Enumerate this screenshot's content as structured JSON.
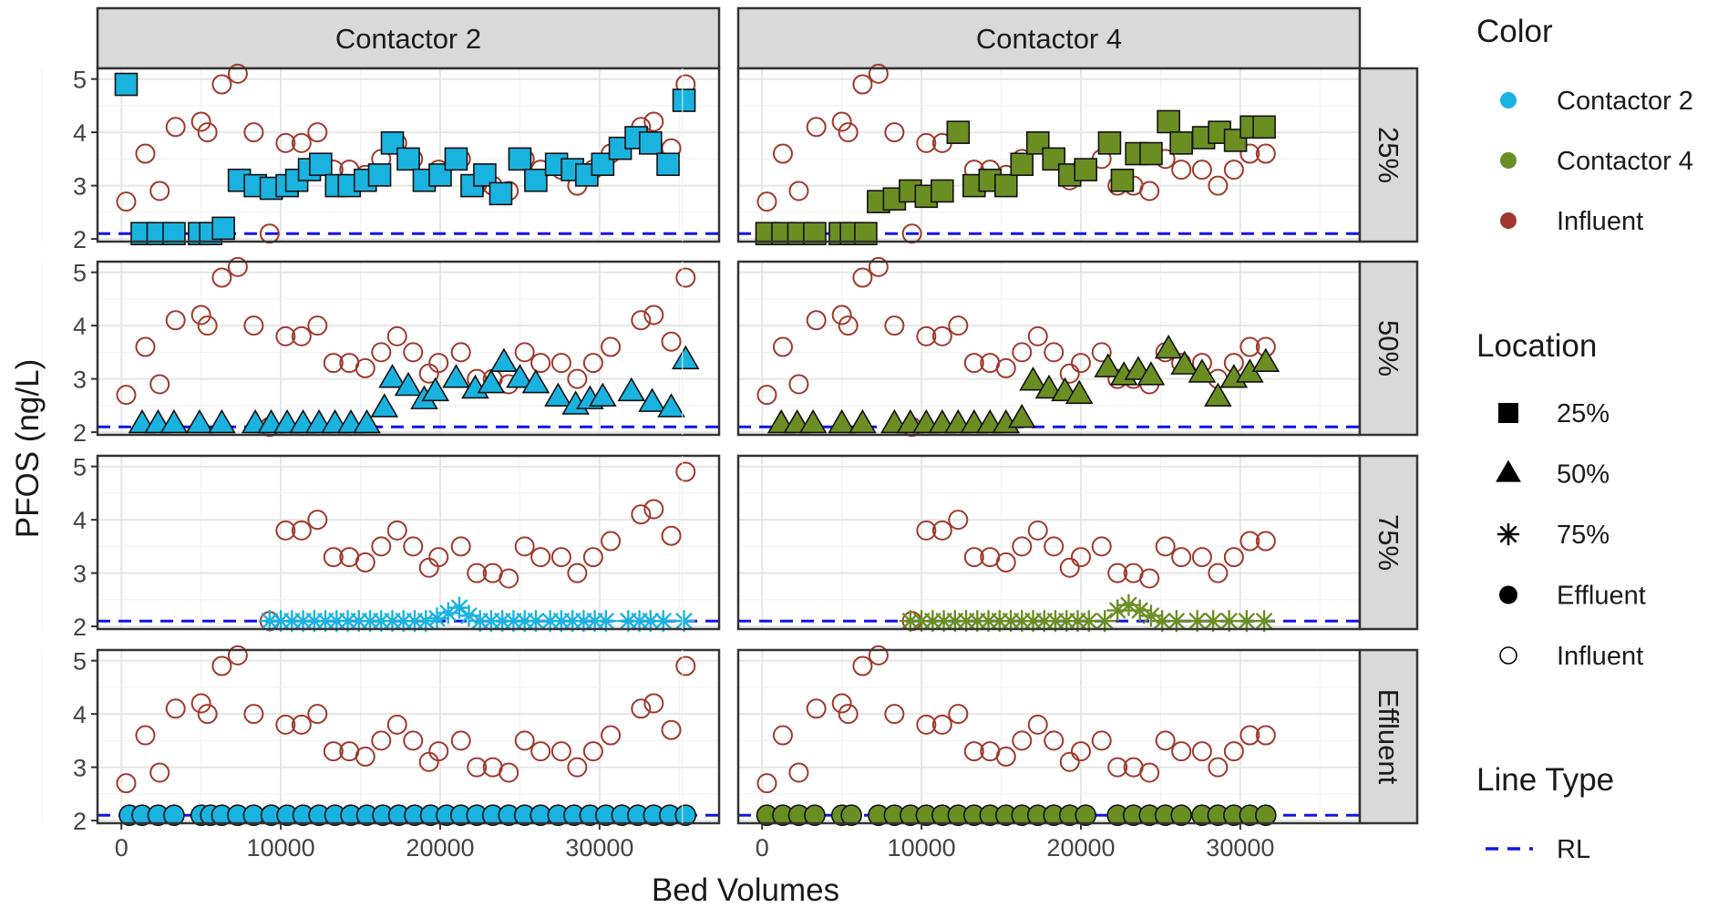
{
  "chart_data": {
    "type": "scatter",
    "xlabel": "Bed Volumes",
    "ylabel": "PFOS (ng/L)",
    "x_ticks": [
      0,
      10000,
      20000,
      30000
    ],
    "y_ticks": [
      2,
      3,
      4,
      5
    ],
    "xlim": [
      -1500,
      37500
    ],
    "ylim": [
      1.95,
      5.2
    ],
    "grid": true,
    "reporting_limit": 2.1,
    "columns": [
      "Contactor 2",
      "Contactor 4"
    ],
    "rows": [
      "25%",
      "50%",
      "75%",
      "Effluent"
    ],
    "colors": {
      "Contactor 2": "#1ab3e0",
      "Contactor 4": "#6b8e23",
      "Influent": "#a0392c",
      "RL": "#1414e6"
    },
    "legend": {
      "position": "right",
      "color_title": "Color",
      "color_items": [
        "Contactor 2",
        "Contactor 4",
        "Influent"
      ],
      "location_title": "Location",
      "location_items": [
        {
          "label": "25%",
          "shape": "square"
        },
        {
          "label": "50%",
          "shape": "triangle"
        },
        {
          "label": "75%",
          "shape": "asterisk"
        },
        {
          "label": "Effluent",
          "shape": "circle"
        },
        {
          "label": "Influent",
          "shape": "open-circle"
        }
      ],
      "line_title": "Line Type",
      "line_items": [
        {
          "label": "RL",
          "style": "dashed"
        }
      ]
    },
    "influent": {
      "Contactor 2": {
        "x": [
          300,
          1500,
          2400,
          3400,
          5000,
          5400,
          6300,
          7300,
          8300,
          9300,
          10300,
          11300,
          12300,
          13300,
          14300,
          15300,
          16300,
          17300,
          18300,
          19300,
          19900,
          21300,
          22300,
          23300,
          24300,
          25300,
          26300,
          27600,
          28600,
          29600,
          30700,
          32600,
          33400,
          34500,
          35400
        ],
        "y": [
          2.7,
          3.6,
          2.9,
          4.1,
          4.2,
          4.0,
          4.9,
          5.1,
          4.0,
          2.1,
          3.8,
          3.8,
          4.0,
          3.3,
          3.3,
          3.2,
          3.5,
          3.8,
          3.5,
          3.1,
          3.3,
          3.5,
          3.0,
          3.0,
          2.9,
          3.5,
          3.3,
          3.3,
          3.0,
          3.3,
          3.6,
          4.1,
          4.2,
          3.7,
          4.9
        ]
      },
      "Contactor 4": {
        "x": [
          300,
          1300,
          2300,
          3400,
          5000,
          5400,
          6300,
          7300,
          8300,
          9400,
          10300,
          11300,
          12300,
          13300,
          14300,
          15300,
          16300,
          17300,
          18300,
          19300,
          20000,
          21300,
          22300,
          23300,
          24300,
          25300,
          26300,
          27600,
          28600,
          29600,
          30600,
          31600
        ],
        "y": [
          2.7,
          3.6,
          2.9,
          4.1,
          4.2,
          4.0,
          4.9,
          5.1,
          4.0,
          2.1,
          3.8,
          3.8,
          4.0,
          3.3,
          3.3,
          3.2,
          3.5,
          3.8,
          3.5,
          3.1,
          3.3,
          3.5,
          3.0,
          3.0,
          2.9,
          3.5,
          3.3,
          3.3,
          3.0,
          3.3,
          3.6,
          3.6
        ]
      }
    },
    "influent_visible_from": {
      "Contactor 2": [
        0,
        0,
        9000,
        0
      ],
      "Contactor 4": [
        0,
        0,
        9000,
        0
      ]
    },
    "series": [
      {
        "column": "Contactor 2",
        "location": "25%",
        "x": [
          300,
          1300,
          2300,
          3300,
          4900,
          5600,
          6400,
          7400,
          8400,
          9400,
          10400,
          11000,
          11800,
          12500,
          13500,
          14300,
          15300,
          16200,
          17000,
          18000,
          19000,
          20000,
          21000,
          22000,
          22800,
          23800,
          25000,
          26000,
          27300,
          28300,
          29200,
          30200,
          31300,
          32300,
          33200,
          34300,
          35300
        ],
        "y": [
          4.9,
          2.1,
          2.1,
          2.1,
          2.1,
          2.1,
          2.2,
          3.1,
          3.0,
          2.95,
          3.0,
          3.1,
          3.3,
          3.4,
          3.0,
          3.0,
          3.1,
          3.2,
          3.8,
          3.5,
          3.1,
          3.2,
          3.5,
          3.0,
          3.2,
          2.85,
          3.5,
          3.1,
          3.4,
          3.3,
          3.2,
          3.4,
          3.7,
          3.9,
          3.8,
          3.4,
          4.6
        ]
      },
      {
        "column": "Contactor 2",
        "location": "50%",
        "x": [
          1300,
          2300,
          3300,
          4900,
          6300,
          8400,
          9400,
          10400,
          11400,
          12400,
          13400,
          14400,
          15400,
          16500,
          17000,
          18000,
          19000,
          19700,
          21000,
          22200,
          23200,
          24000,
          25000,
          26000,
          27400,
          28500,
          29400,
          30200,
          32000,
          33300,
          34500,
          35400
        ],
        "y": [
          2.15,
          2.15,
          2.15,
          2.15,
          2.15,
          2.15,
          2.15,
          2.15,
          2.15,
          2.15,
          2.15,
          2.15,
          2.15,
          2.45,
          3.0,
          2.85,
          2.6,
          2.75,
          3.0,
          2.8,
          2.9,
          3.3,
          3.0,
          2.9,
          2.65,
          2.5,
          2.6,
          2.65,
          2.75,
          2.55,
          2.45,
          3.35
        ]
      },
      {
        "column": "Contactor 2",
        "location": "75%",
        "x": [
          9300,
          10000,
          10700,
          11400,
          12100,
          12800,
          13500,
          14200,
          14900,
          15600,
          16300,
          17000,
          17700,
          18400,
          19100,
          19800,
          20500,
          21200,
          21800,
          22500,
          23200,
          23900,
          24600,
          25300,
          26000,
          26900,
          27600,
          28300,
          29000,
          29700,
          30400,
          31800,
          32500,
          33200,
          34000,
          35300
        ],
        "y": [
          2.1,
          2.1,
          2.1,
          2.1,
          2.1,
          2.1,
          2.1,
          2.1,
          2.1,
          2.1,
          2.1,
          2.1,
          2.1,
          2.1,
          2.1,
          2.15,
          2.25,
          2.35,
          2.2,
          2.1,
          2.1,
          2.1,
          2.1,
          2.1,
          2.1,
          2.1,
          2.1,
          2.1,
          2.1,
          2.1,
          2.1,
          2.1,
          2.1,
          2.1,
          2.1,
          2.1
        ]
      },
      {
        "column": "Contactor 2",
        "location": "Effluent",
        "x": [
          500,
          1300,
          2300,
          3300,
          5000,
          5600,
          6300,
          7300,
          8300,
          9400,
          10400,
          11400,
          12400,
          13400,
          14400,
          15400,
          16400,
          17400,
          18400,
          19400,
          20400,
          21300,
          22300,
          23300,
          24300,
          25300,
          26300,
          27400,
          28400,
          29400,
          30400,
          31400,
          32400,
          33400,
          34400,
          35400
        ],
        "y": [
          2.1,
          2.1,
          2.1,
          2.1,
          2.1,
          2.1,
          2.1,
          2.1,
          2.1,
          2.1,
          2.1,
          2.1,
          2.1,
          2.1,
          2.1,
          2.1,
          2.1,
          2.1,
          2.1,
          2.1,
          2.1,
          2.1,
          2.1,
          2.1,
          2.1,
          2.1,
          2.1,
          2.1,
          2.1,
          2.1,
          2.1,
          2.1,
          2.1,
          2.1,
          2.1,
          2.1
        ]
      },
      {
        "column": "Contactor 4",
        "location": "25%",
        "x": [
          300,
          1300,
          2300,
          3300,
          4900,
          5600,
          6500,
          7300,
          8300,
          9300,
          10300,
          11300,
          12300,
          13300,
          14300,
          15300,
          16300,
          17300,
          18300,
          19300,
          20300,
          21800,
          22600,
          23500,
          24400,
          25500,
          26300,
          27700,
          28700,
          29700,
          30700,
          31500
        ],
        "y": [
          2.1,
          2.1,
          2.1,
          2.1,
          2.1,
          2.1,
          2.1,
          2.7,
          2.75,
          2.9,
          2.8,
          2.9,
          4.0,
          3.0,
          3.1,
          3.0,
          3.4,
          3.8,
          3.5,
          3.2,
          3.3,
          3.8,
          3.1,
          3.6,
          3.6,
          4.2,
          3.8,
          3.9,
          4.0,
          3.85,
          4.1,
          4.1
        ]
      },
      {
        "column": "Contactor 4",
        "location": "50%",
        "x": [
          1200,
          2200,
          3200,
          5000,
          6300,
          8300,
          9300,
          10300,
          11300,
          12300,
          13300,
          14300,
          15300,
          16300,
          17000,
          18000,
          19000,
          19900,
          21700,
          22700,
          23600,
          24400,
          25500,
          26500,
          27600,
          28600,
          29600,
          30600,
          31600
        ],
        "y": [
          2.15,
          2.15,
          2.15,
          2.15,
          2.15,
          2.15,
          2.15,
          2.15,
          2.15,
          2.15,
          2.15,
          2.15,
          2.15,
          2.25,
          2.95,
          2.8,
          2.75,
          2.7,
          3.2,
          3.05,
          3.15,
          3.05,
          3.55,
          3.25,
          3.1,
          2.65,
          3.0,
          3.1,
          3.3
        ]
      },
      {
        "column": "Contactor 4",
        "location": "75%",
        "x": [
          9300,
          10000,
          10700,
          11400,
          12100,
          12800,
          13500,
          14200,
          14900,
          15600,
          16300,
          17000,
          17700,
          18400,
          19100,
          19800,
          20500,
          21500,
          22300,
          23000,
          23700,
          24400,
          25100,
          26000,
          27300,
          28300,
          29300,
          30400,
          31500
        ],
        "y": [
          2.1,
          2.1,
          2.1,
          2.1,
          2.1,
          2.1,
          2.1,
          2.1,
          2.1,
          2.1,
          2.1,
          2.1,
          2.1,
          2.1,
          2.1,
          2.1,
          2.1,
          2.1,
          2.3,
          2.4,
          2.3,
          2.2,
          2.1,
          2.1,
          2.1,
          2.1,
          2.1,
          2.1,
          2.1
        ]
      },
      {
        "column": "Contactor 4",
        "location": "Effluent",
        "x": [
          300,
          1300,
          2300,
          3300,
          5000,
          5600,
          7300,
          8300,
          9300,
          10300,
          11300,
          12300,
          13300,
          14300,
          15300,
          16300,
          17300,
          18300,
          19300,
          20300,
          22300,
          23300,
          24300,
          25300,
          26300,
          27600,
          28600,
          29600,
          30600,
          31600
        ],
        "y": [
          2.1,
          2.1,
          2.1,
          2.1,
          2.1,
          2.1,
          2.1,
          2.1,
          2.1,
          2.1,
          2.1,
          2.1,
          2.1,
          2.1,
          2.1,
          2.1,
          2.1,
          2.1,
          2.1,
          2.1,
          2.1,
          2.1,
          2.1,
          2.1,
          2.1,
          2.1,
          2.1,
          2.1,
          2.1,
          2.1
        ]
      }
    ]
  }
}
